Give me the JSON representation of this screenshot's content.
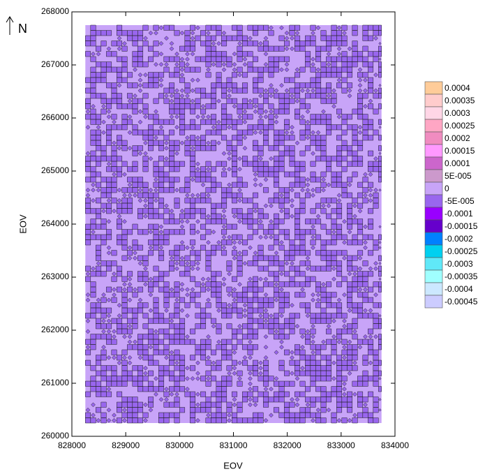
{
  "chart_data": {
    "type": "contour",
    "x_label": "EOV",
    "y_label": "EOV",
    "north_label": "N",
    "xlim": [
      828000,
      834000
    ],
    "ylim": [
      260000,
      268000
    ],
    "xticks": [
      828000,
      829000,
      830000,
      831000,
      832000,
      833000,
      834000
    ],
    "yticks": [
      260000,
      261000,
      262000,
      263000,
      264000,
      265000,
      266000,
      267000,
      268000
    ],
    "field_x": [
      828250,
      833750
    ],
    "field_y": [
      260250,
      267750
    ],
    "colorbar": {
      "levels": [
        0.0004,
        0.00035,
        0.0003,
        0.00025,
        0.0002,
        0.00015,
        0.0001,
        {
          "value": 5e-05,
          "label": "5E-005"
        },
        0,
        {
          "value": -5e-05,
          "label": "-5E-005"
        },
        -0.0001,
        -0.00015,
        -0.0002,
        -0.00025,
        -0.0003,
        -0.00035,
        -0.0004,
        -0.00045
      ],
      "colors": [
        "#ffcc99",
        "#ffcccc",
        "#ffd6e6",
        "#ffa6c4",
        "#f08cc0",
        "#ff99ff",
        "#cc66cc",
        "#cc99cc",
        "#c8a4f8",
        "#9966ee",
        "#9900ff",
        "#6600cc",
        "#0080ff",
        "#00d0f0",
        "#60e8f8",
        "#a0ffff",
        "#cce8ff",
        "#ccccff"
      ]
    }
  }
}
